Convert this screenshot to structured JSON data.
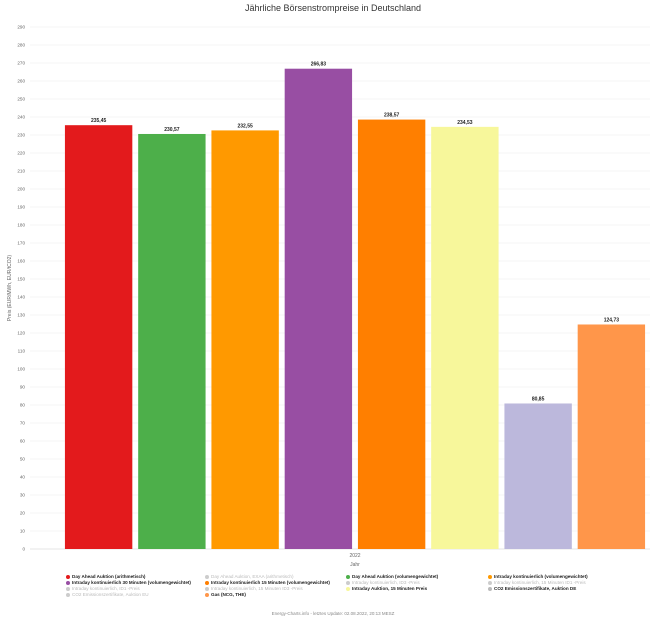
{
  "chart_data": {
    "type": "bar",
    "title": "Jährliche Börsenstrompreise in Deutschland",
    "ylabel": "Preis (EUR/MWh, EUR/tCO2)",
    "xlabel": "Jahr",
    "x_category": "2022",
    "ylim": [
      0,
      290
    ],
    "ytick_step": 10,
    "grid": true,
    "series": [
      {
        "name": "Day Ahead Auktion (arithmetisch)",
        "value": 235.45,
        "label": "235,45",
        "color": "#e31a1c"
      },
      {
        "name": "Day Ahead Auktion (volumengewichtet)",
        "value": 230.57,
        "label": "230,57",
        "color": "#4daf4a"
      },
      {
        "name": "Intraday kontinuierlich (volumengewichtet)",
        "value": 232.55,
        "label": "232,55",
        "color": "#ff9900"
      },
      {
        "name": "Intraday kontinuierlich 30 Minuten (volumengewichtet)",
        "value": 266.83,
        "label": "266,83",
        "color": "#984ea3"
      },
      {
        "name": "Intraday kontinuierlich 15 Minuten (volumengewichtet)",
        "value": 238.57,
        "label": "238,57",
        "color": "#ff7f00"
      },
      {
        "name": "Intraday Auktion, 15 Minuten Preis",
        "value": 234.53,
        "label": "234,53",
        "color": "#f7f79b"
      },
      {
        "name": "CO2 Emissionszertifikate, Auktion DE",
        "value": 80.85,
        "label": "80,85",
        "color": "#bcb8dc"
      },
      {
        "name": "Gas (NCG, THE)",
        "value": 124.73,
        "label": "124,73",
        "color": "#ff964a"
      }
    ]
  },
  "legend": [
    {
      "label": "Day Ahead Auktion (arithmetisch)",
      "color": "#e31a1c",
      "active": true
    },
    {
      "label": "Day Ahead Auktion, EXAA (arithmetisch)",
      "color": "#cccccc",
      "active": false
    },
    {
      "label": "Day Ahead Auktion (volumengewichtet)",
      "color": "#4daf4a",
      "active": true
    },
    {
      "label": "Intraday kontinuierlich (volumengewichtet)",
      "color": "#ff9900",
      "active": true
    },
    {
      "label": "Intraday kontinuierlich 30 Minuten (volumengewichtet)",
      "color": "#984ea3",
      "active": true
    },
    {
      "label": "Intraday kontinuierlich 15 Minuten (volumengewichtet)",
      "color": "#ff7f00",
      "active": true
    },
    {
      "label": "Intraday kontinuierlich, ID3 -Preis",
      "color": "#cccccc",
      "active": false
    },
    {
      "label": "Intraday kontinuierlich, 15 Minuten ID1 -Preis",
      "color": "#cccccc",
      "active": false
    },
    {
      "label": "Intraday kontinuierlich, ID1 -Preis",
      "color": "#cccccc",
      "active": false
    },
    {
      "label": "Intraday kontinuierlich, 15 Minuten ID3 -Preis",
      "color": "#cccccc",
      "active": false
    },
    {
      "label": "Intraday Auktion, 15 Minuten Preis",
      "color": "#f7f79b",
      "active": true
    },
    {
      "label": "CO2 Emissionszertifikate, Auktion DE",
      "color": "#bbbbbb",
      "active": true
    },
    {
      "label": "CO2 Emissionszertifikate, Auktion EU",
      "color": "#cccccc",
      "active": false
    },
    {
      "label": "Gas (NCG, THE)",
      "color": "#ff964a",
      "active": true
    }
  ],
  "footer": "Energy-Charts.info - letztes Update: 02.08.2022, 20:13 MESZ"
}
